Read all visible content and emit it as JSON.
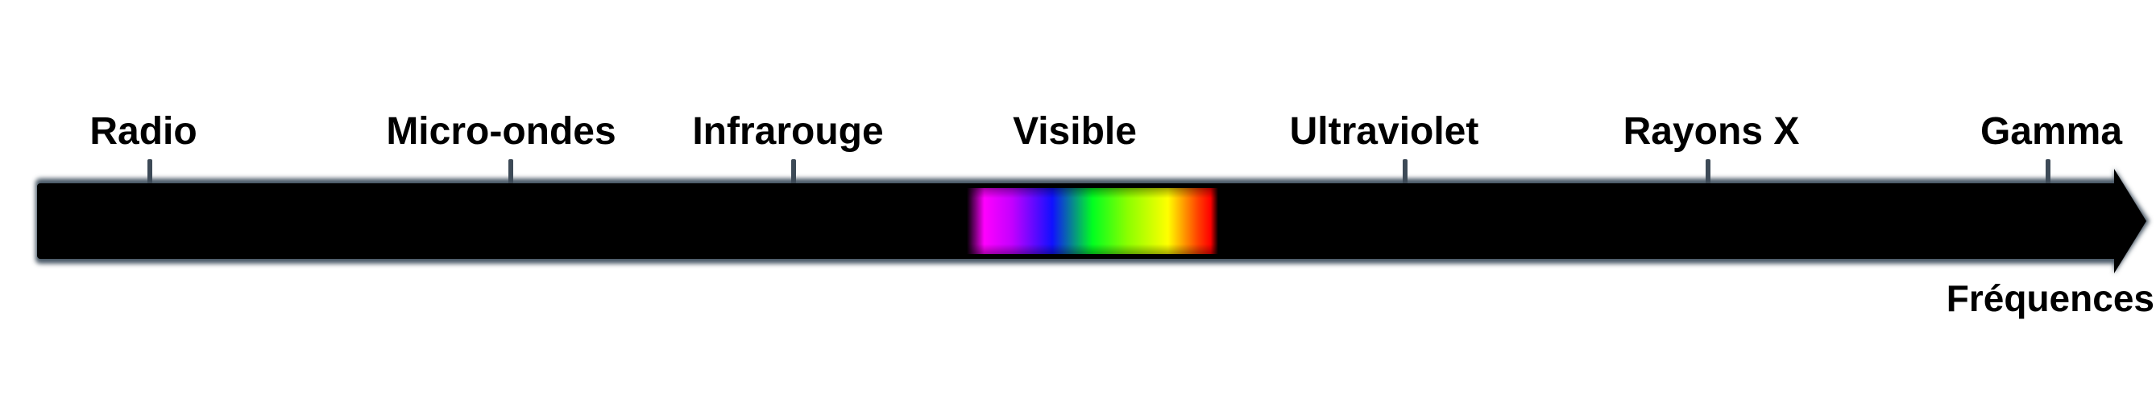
{
  "diagram": {
    "bands": [
      {
        "label": "Radio"
      },
      {
        "label": "Micro-ondes"
      },
      {
        "label": "Infrarouge"
      },
      {
        "label": "Visible"
      },
      {
        "label": "Ultraviolet"
      },
      {
        "label": "Rayons X"
      },
      {
        "label": "Gamma"
      }
    ],
    "axis_label": "Fréquences",
    "colors": {
      "bar": "#000000",
      "bar_glow": "#4a5866",
      "tick": "#3d4a57",
      "label": "#000000",
      "spectrum": [
        "#ff00ff",
        "#0000ff",
        "#00ff00",
        "#ffff00",
        "#ff0000"
      ]
    }
  }
}
